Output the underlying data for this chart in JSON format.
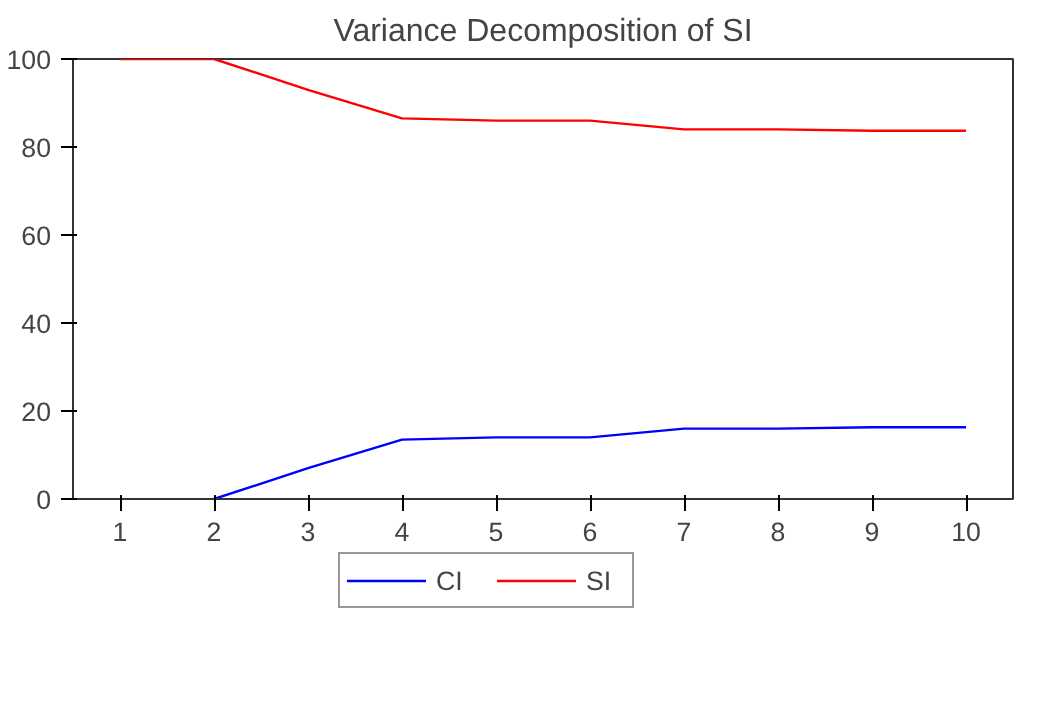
{
  "chart_data": {
    "type": "line",
    "title": "Variance Decomposition of SI",
    "x": [
      1,
      2,
      3,
      4,
      5,
      6,
      7,
      8,
      9,
      10
    ],
    "series": [
      {
        "name": "CI",
        "color": "#0000ff",
        "values": [
          null,
          0,
          7,
          13.5,
          14,
          14,
          16,
          16,
          16.3,
          16.3
        ]
      },
      {
        "name": "SI",
        "color": "#ff0000",
        "values": [
          100,
          100,
          93,
          86.5,
          86,
          86,
          84,
          84,
          83.7,
          83.7
        ]
      }
    ],
    "xlim": [
      0.5,
      10.5
    ],
    "xticks": [
      1,
      2,
      3,
      4,
      5,
      6,
      7,
      8,
      9,
      10
    ],
    "ylim": [
      0,
      100
    ],
    "yticks": [
      0,
      20,
      40,
      60,
      80,
      100
    ],
    "grid": false,
    "legend": "bottom",
    "marker": "none",
    "line_style": "solid"
  }
}
